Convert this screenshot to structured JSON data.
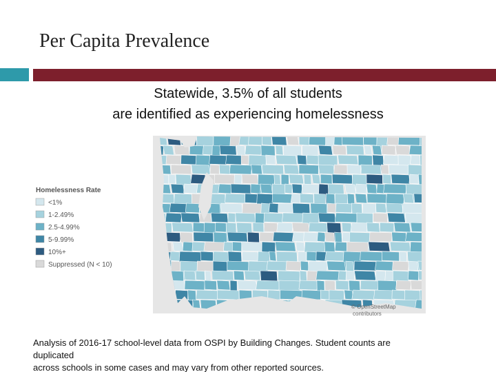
{
  "header": {
    "title": "Per Capita Prevalence"
  },
  "subtitle": {
    "lines": [
      "Statewide, 3.5% of all students",
      "are identified as experiencing homelessness"
    ]
  },
  "legend": {
    "title": "Homelessness Rate",
    "items": [
      {
        "label": "<1%",
        "color": "#d4e7ee"
      },
      {
        "label": "1-2.49%",
        "color": "#a6d2de"
      },
      {
        "label": "2.5-4.99%",
        "color": "#6db2c7"
      },
      {
        "label": "5-9.99%",
        "color": "#3f86a6"
      },
      {
        "label": "10%+",
        "color": "#2d5b80"
      },
      {
        "label": "Suppressed (N < 10)",
        "color": "#d9d9d9"
      }
    ]
  },
  "map": {
    "attribution": [
      "© OpenStreetMap",
      "contributors"
    ]
  },
  "footnote": {
    "lines": [
      "Analysis of 2016-17 school-level data from OSPI by Building Changes. Student counts are",
      "duplicated",
      "across schools in some cases and may vary from other reported sources."
    ]
  }
}
